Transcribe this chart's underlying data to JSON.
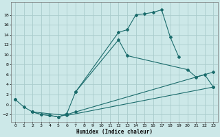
{
  "xlabel": "Humidex (Indice chaleur)",
  "background_color": "#cce8e8",
  "grid_color": "#aacccc",
  "line_color": "#1a6b6b",
  "xlim": [
    -0.5,
    23.5
  ],
  "ylim": [
    -3.5,
    20.5
  ],
  "xticks": [
    0,
    1,
    2,
    3,
    4,
    5,
    6,
    7,
    8,
    9,
    10,
    11,
    12,
    13,
    14,
    15,
    16,
    17,
    18,
    19,
    20,
    21,
    22,
    23
  ],
  "yticks": [
    -2,
    0,
    2,
    4,
    6,
    8,
    10,
    12,
    14,
    16,
    18
  ],
  "series": [
    {
      "x": [
        0,
        1,
        2,
        3,
        4,
        5,
        6,
        7,
        12,
        13,
        14,
        15,
        16,
        17,
        18,
        19
      ],
      "y": [
        1,
        -0.5,
        -1.5,
        -2,
        -2.2,
        -2.5,
        -1.8,
        2.5,
        14.5,
        15.0,
        18.0,
        18.2,
        18.5,
        19.0,
        13.5,
        9.5
      ]
    },
    {
      "x": [
        7,
        12,
        13,
        20,
        21,
        22,
        23
      ],
      "y": [
        2.5,
        13.0,
        9.8,
        7.0,
        5.5,
        6.0,
        3.5
      ]
    },
    {
      "x": [
        2,
        3,
        4,
        5,
        6,
        7,
        23
      ],
      "y": [
        -1.5,
        -2.0,
        -2.2,
        -2.5,
        -2.0,
        -1.5,
        6.5
      ]
    },
    {
      "x": [
        2,
        6,
        23
      ],
      "y": [
        -1.5,
        -2.2,
        3.5
      ]
    }
  ]
}
